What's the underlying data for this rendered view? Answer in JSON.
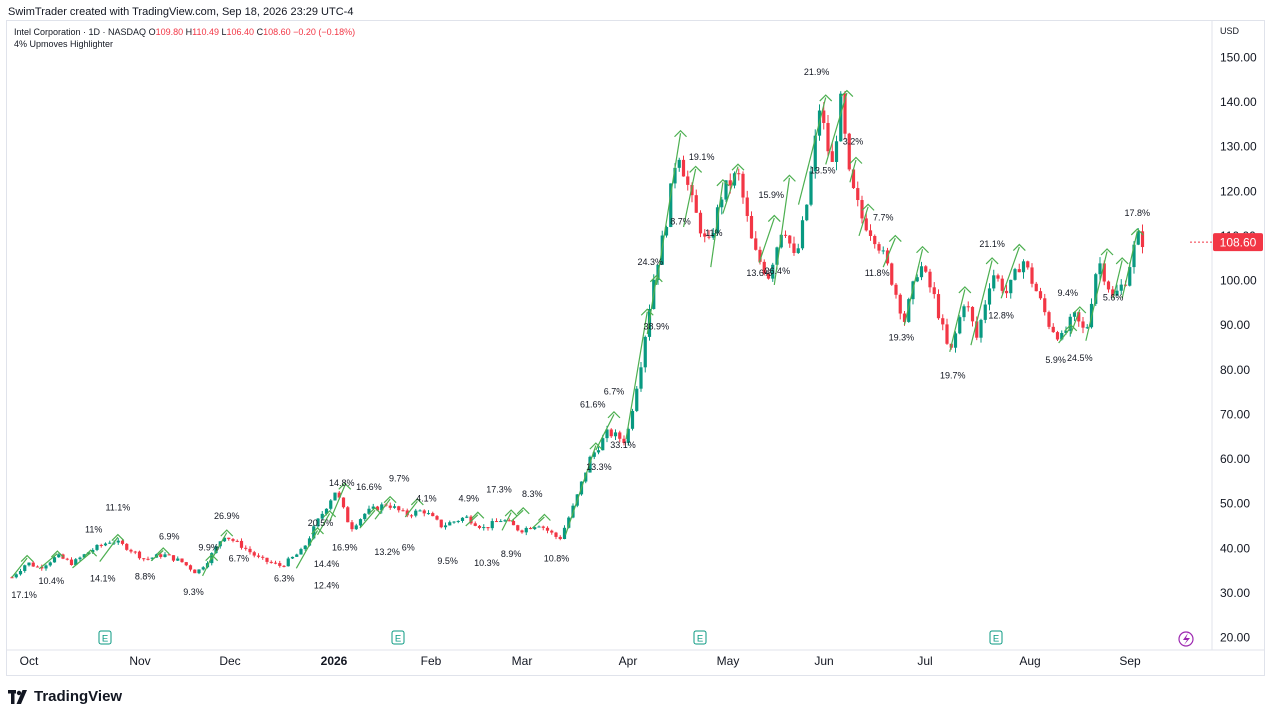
{
  "header": {
    "credit": "SwimTrader created with TradingView.com, Sep 18, 2026 23:29 UTC-4"
  },
  "legend": {
    "symbol": "Intel Corporation · 1D · NASDAQ",
    "open_label": "O",
    "open": "109.80",
    "high_label": "H",
    "high": "110.49",
    "low_label": "L",
    "low": "106.40",
    "close_label": "C",
    "close": "108.60",
    "change": "−0.20 (−0.18%)",
    "indicator": "4% Upmoves Highlighter"
  },
  "currency": "USD",
  "footer": {
    "brand": "TradingView"
  },
  "colors": {
    "up": "#089981",
    "down": "#f23645",
    "upmove": "#4caf50",
    "earnings": "#089981",
    "text": "#131722",
    "grid": "#e0e3eb"
  },
  "chart_data": {
    "type": "candlestick",
    "y_axis": {
      "ticks": [
        "150.00",
        "140.00",
        "130.00",
        "120.00",
        "110.00",
        "100.00",
        "90.00",
        "80.00",
        "70.00",
        "60.00",
        "50.00",
        "40.00",
        "30.00",
        "20.00"
      ],
      "range": [
        16,
        152
      ],
      "position": "right"
    },
    "x_axis": {
      "ticks": [
        "Oct",
        "Nov",
        "Dec",
        "2026",
        "Feb",
        "Mar",
        "Apr",
        "May",
        "Jun",
        "Jul",
        "Aug",
        "Sep"
      ],
      "bold": [
        "2026"
      ]
    },
    "last_price": "108.60",
    "grid": false,
    "earnings_markers": {
      "label": "E",
      "months": [
        "Nov",
        "Jan",
        "May",
        "Aug"
      ]
    },
    "dividend_marker": {
      "icon": "lightning-icon",
      "month": "Sep"
    },
    "price_path": [
      {
        "date": "2025-10-01",
        "price": 33.5
      },
      {
        "date": "2025-10-06",
        "price": 36.8
      },
      {
        "date": "2025-10-10",
        "price": 35.6
      },
      {
        "date": "2025-10-16",
        "price": 38.2
      },
      {
        "date": "2025-10-21",
        "price": 36.6
      },
      {
        "date": "2025-10-27",
        "price": 39.5
      },
      {
        "date": "2025-11-03",
        "price": 41.8
      },
      {
        "date": "2025-11-08",
        "price": 40.2
      },
      {
        "date": "2025-11-14",
        "price": 37.5
      },
      {
        "date": "2025-11-20",
        "price": 38.6
      },
      {
        "date": "2025-11-26",
        "price": 37.0
      },
      {
        "date": "2025-12-01",
        "price": 34.5
      },
      {
        "date": "2025-12-05",
        "price": 37.5
      },
      {
        "date": "2025-12-10",
        "price": 43.0
      },
      {
        "date": "2025-12-16",
        "price": 40.5
      },
      {
        "date": "2025-12-22",
        "price": 37.5
      },
      {
        "date": "2025-12-29",
        "price": 36.0
      },
      {
        "date": "2026-01-05",
        "price": 39.5
      },
      {
        "date": "2026-01-10",
        "price": 46.0
      },
      {
        "date": "2026-01-16",
        "price": 53.0
      },
      {
        "date": "2026-01-21",
        "price": 44.5
      },
      {
        "date": "2026-01-26",
        "price": 48.0
      },
      {
        "date": "2026-02-02",
        "price": 50.0
      },
      {
        "date": "2026-02-08",
        "price": 47.5
      },
      {
        "date": "2026-02-14",
        "price": 48.5
      },
      {
        "date": "2026-02-20",
        "price": 45.0
      },
      {
        "date": "2026-02-28",
        "price": 47.0
      },
      {
        "date": "2026-03-06",
        "price": 44.5
      },
      {
        "date": "2026-03-12",
        "price": 46.5
      },
      {
        "date": "2026-03-18",
        "price": 44.0
      },
      {
        "date": "2026-03-24",
        "price": 45.5
      },
      {
        "date": "2026-03-31",
        "price": 42.0
      },
      {
        "date": "2026-04-05",
        "price": 50.0
      },
      {
        "date": "2026-04-10",
        "price": 60.0
      },
      {
        "date": "2026-04-16",
        "price": 66.0
      },
      {
        "date": "2026-04-22",
        "price": 64.0
      },
      {
        "date": "2026-04-27",
        "price": 82.0
      },
      {
        "date": "2026-05-01",
        "price": 100.0
      },
      {
        "date": "2026-05-05",
        "price": 112.0
      },
      {
        "date": "2026-05-09",
        "price": 130.0
      },
      {
        "date": "2026-05-14",
        "price": 117.0
      },
      {
        "date": "2026-05-19",
        "price": 107.0
      },
      {
        "date": "2026-05-24",
        "price": 120.0
      },
      {
        "date": "2026-05-29",
        "price": 124.0
      },
      {
        "date": "2026-06-03",
        "price": 107.0
      },
      {
        "date": "2026-06-08",
        "price": 101.0
      },
      {
        "date": "2026-06-13",
        "price": 113.0
      },
      {
        "date": "2026-06-17",
        "price": 104.0
      },
      {
        "date": "2026-06-21",
        "price": 118.0
      },
      {
        "date": "2026-06-25",
        "price": 139.0
      },
      {
        "date": "2026-06-29",
        "price": 125.0
      },
      {
        "date": "2026-07-02",
        "price": 140.0
      },
      {
        "date": "2026-07-05",
        "price": 122.0
      },
      {
        "date": "2026-07-09",
        "price": 114.0
      },
      {
        "date": "2026-07-14",
        "price": 109.0
      },
      {
        "date": "2026-07-18",
        "price": 102.0
      },
      {
        "date": "2026-07-23",
        "price": 91.0
      },
      {
        "date": "2026-07-28",
        "price": 104.0
      },
      {
        "date": "2026-08-02",
        "price": 96.0
      },
      {
        "date": "2026-08-07",
        "price": 83.0
      },
      {
        "date": "2026-08-12",
        "price": 96.0
      },
      {
        "date": "2026-08-16",
        "price": 87.0
      },
      {
        "date": "2026-08-21",
        "price": 102.0
      },
      {
        "date": "2026-08-26",
        "price": 97.0
      },
      {
        "date": "2026-08-31",
        "price": 105.0
      },
      {
        "date": "2026-09-05",
        "price": 97.0
      },
      {
        "date": "2026-09-09",
        "price": 90.0
      },
      {
        "date": "2026-09-13",
        "price": 87.0
      },
      {
        "date": "2026-09-17",
        "price": 92.0
      },
      {
        "date": "2026-09-21",
        "price": 88.0
      },
      {
        "date": "2026-09-25",
        "price": 105.0
      },
      {
        "date": "2026-09-30",
        "price": 96.0
      },
      {
        "date": "2026-10-04",
        "price": 100.0
      },
      {
        "date": "2026-10-08",
        "price": 110.0
      },
      {
        "date": "2026-10-10",
        "price": 108.6
      }
    ],
    "upmoves": [
      {
        "from": {
          "date": "2025-10-01",
          "price": 33.5
        },
        "to": {
          "date": "2025-10-06",
          "price": 37.8
        }
      },
      {
        "from": {
          "date": "2025-10-10",
          "price": 35.4
        },
        "to": {
          "date": "2025-10-16",
          "price": 38.8
        }
      },
      {
        "from": {
          "date": "2025-10-21",
          "price": 35.6
        },
        "to": {
          "date": "2025-10-27",
          "price": 39.0
        }
      },
      {
        "from": {
          "date": "2025-10-30",
          "price": 37.0
        },
        "to": {
          "date": "2025-11-05",
          "price": 42.5
        }
      },
      {
        "from": {
          "date": "2025-11-16",
          "price": 37.2
        },
        "to": {
          "date": "2025-11-20",
          "price": 39.5
        }
      },
      {
        "from": {
          "date": "2025-12-03",
          "price": 33.8
        },
        "to": {
          "date": "2025-12-06",
          "price": 38.0
        }
      },
      {
        "from": {
          "date": "2025-12-06",
          "price": 37.5
        },
        "to": {
          "date": "2025-12-11",
          "price": 43.5
        }
      },
      {
        "from": {
          "date": "2026-01-03",
          "price": 35.5
        },
        "to": {
          "date": "2026-01-10",
          "price": 44.0
        }
      },
      {
        "from": {
          "date": "2026-01-10",
          "price": 43.0
        },
        "to": {
          "date": "2026-01-14",
          "price": 47.8
        }
      },
      {
        "from": {
          "date": "2026-01-14",
          "price": 46.0
        },
        "to": {
          "date": "2026-01-19",
          "price": 54.0
        }
      },
      {
        "from": {
          "date": "2026-01-24",
          "price": 44.5
        },
        "to": {
          "date": "2026-01-29",
          "price": 48.5
        }
      },
      {
        "from": {
          "date": "2026-01-29",
          "price": 46.5
        },
        "to": {
          "date": "2026-02-03",
          "price": 51.0
        }
      },
      {
        "from": {
          "date": "2026-02-08",
          "price": 47.0
        },
        "to": {
          "date": "2026-02-12",
          "price": 50.5
        }
      },
      {
        "from": {
          "date": "2026-02-28",
          "price": 45.0
        },
        "to": {
          "date": "2026-03-04",
          "price": 47.5
        }
      },
      {
        "from": {
          "date": "2026-03-12",
          "price": 44.0
        },
        "to": {
          "date": "2026-03-15",
          "price": 48.0
        }
      },
      {
        "from": {
          "date": "2026-03-15",
          "price": 46.0
        },
        "to": {
          "date": "2026-03-19",
          "price": 48.5
        }
      },
      {
        "from": {
          "date": "2026-03-22",
          "price": 44.5
        },
        "to": {
          "date": "2026-03-26",
          "price": 47.0
        }
      },
      {
        "from": {
          "date": "2026-04-02",
          "price": 43.0
        },
        "to": {
          "date": "2026-04-12",
          "price": 63.0
        }
      },
      {
        "from": {
          "date": "2026-04-12",
          "price": 62.0
        },
        "to": {
          "date": "2026-04-18",
          "price": 70.0
        }
      },
      {
        "from": {
          "date": "2026-04-22",
          "price": 64.5
        },
        "to": {
          "date": "2026-04-29",
          "price": 93.0
        }
      },
      {
        "from": {
          "date": "2026-04-29",
          "price": 88.0
        },
        "to": {
          "date": "2026-05-02",
          "price": 100.5
        }
      },
      {
        "from": {
          "date": "2026-05-02",
          "price": 99.0
        },
        "to": {
          "date": "2026-05-10",
          "price": 133.0
        }
      },
      {
        "from": {
          "date": "2026-05-11",
          "price": 112.0
        },
        "to": {
          "date": "2026-05-15",
          "price": 125.0
        }
      },
      {
        "from": {
          "date": "2026-05-20",
          "price": 103.0
        },
        "to": {
          "date": "2026-05-24",
          "price": 122.0
        }
      },
      {
        "from": {
          "date": "2026-05-24",
          "price": 115.0
        },
        "to": {
          "date": "2026-05-29",
          "price": 125.5
        }
      },
      {
        "from": {
          "date": "2026-06-05",
          "price": 104.0
        },
        "to": {
          "date": "2026-06-10",
          "price": 114.0
        }
      },
      {
        "from": {
          "date": "2026-06-10",
          "price": 99.0
        },
        "to": {
          "date": "2026-06-15",
          "price": 123.0
        }
      },
      {
        "from": {
          "date": "2026-06-18",
          "price": 117.0
        },
        "to": {
          "date": "2026-06-27",
          "price": 141.0
        }
      },
      {
        "from": {
          "date": "2026-06-27",
          "price": 126.0
        },
        "to": {
          "date": "2026-07-04",
          "price": 142.0
        }
      },
      {
        "from": {
          "date": "2026-07-05",
          "price": 122.0
        },
        "to": {
          "date": "2026-07-07",
          "price": 127.0
        }
      },
      {
        "from": {
          "date": "2026-07-08",
          "price": 110.0
        },
        "to": {
          "date": "2026-07-11",
          "price": 116.5
        }
      },
      {
        "from": {
          "date": "2026-07-16",
          "price": 103.0
        },
        "to": {
          "date": "2026-07-20",
          "price": 109.5
        }
      },
      {
        "from": {
          "date": "2026-07-23",
          "price": 90.0
        },
        "to": {
          "date": "2026-07-29",
          "price": 107.0
        }
      },
      {
        "from": {
          "date": "2026-08-07",
          "price": 84.0
        },
        "to": {
          "date": "2026-08-12",
          "price": 98.0
        }
      },
      {
        "from": {
          "date": "2026-08-14",
          "price": 85.5
        },
        "to": {
          "date": "2026-08-21",
          "price": 104.5
        }
      },
      {
        "from": {
          "date": "2026-08-24",
          "price": 96.0
        },
        "to": {
          "date": "2026-08-30",
          "price": 107.5
        }
      },
      {
        "from": {
          "date": "2026-09-12",
          "price": 86.0
        },
        "to": {
          "date": "2026-09-16",
          "price": 89.5
        }
      },
      {
        "from": {
          "date": "2026-09-16",
          "price": 88.0
        },
        "to": {
          "date": "2026-09-19",
          "price": 93.5
        }
      },
      {
        "from": {
          "date": "2026-09-21",
          "price": 86.5
        },
        "to": {
          "date": "2026-09-28",
          "price": 106.5
        }
      },
      {
        "from": {
          "date": "2026-09-30",
          "price": 96.0
        },
        "to": {
          "date": "2026-10-03",
          "price": 104.5
        }
      },
      {
        "from": {
          "date": "2026-10-03",
          "price": 96.0
        },
        "to": {
          "date": "2026-10-08",
          "price": 111.0
        }
      }
    ],
    "annotations": [
      {
        "text": "17.1%",
        "date": "2025-10-05",
        "price": 28.8
      },
      {
        "text": "10.4%",
        "date": "2025-10-14",
        "price": 32.0
      },
      {
        "text": "11%",
        "date": "2025-10-28",
        "price": 43.5
      },
      {
        "text": "14.1%",
        "date": "2025-10-31",
        "price": 32.5
      },
      {
        "text": "11.1%",
        "date": "2025-11-05",
        "price": 48.5
      },
      {
        "text": "8.8%",
        "date": "2025-11-14",
        "price": 33.0
      },
      {
        "text": "6.9%",
        "date": "2025-11-22",
        "price": 42.0
      },
      {
        "text": "9.3%",
        "date": "2025-11-30",
        "price": 29.5
      },
      {
        "text": "9.9%",
        "date": "2025-12-05",
        "price": 39.5
      },
      {
        "text": "26.9%",
        "date": "2025-12-11",
        "price": 46.5
      },
      {
        "text": "6.7%",
        "date": "2025-12-15",
        "price": 37.0
      },
      {
        "text": "6.3%",
        "date": "2025-12-30",
        "price": 32.5
      },
      {
        "text": "20.5%",
        "date": "2026-01-11",
        "price": 45.0
      },
      {
        "text": "14.4%",
        "date": "2026-01-13",
        "price": 35.8
      },
      {
        "text": "12.4%",
        "date": "2026-01-13",
        "price": 31.0
      },
      {
        "text": "14.8%",
        "date": "2026-01-18",
        "price": 54.0
      },
      {
        "text": "16.9%",
        "date": "2026-01-19",
        "price": 39.5
      },
      {
        "text": "16.6%",
        "date": "2026-01-27",
        "price": 53.0
      },
      {
        "text": "13.2%",
        "date": "2026-02-02",
        "price": 38.5
      },
      {
        "text": "9.7%",
        "date": "2026-02-06",
        "price": 55.0
      },
      {
        "text": "6%",
        "date": "2026-02-09",
        "price": 39.5
      },
      {
        "text": "4.1%",
        "date": "2026-02-15",
        "price": 50.5
      },
      {
        "text": "9.5%",
        "date": "2026-02-22",
        "price": 36.5
      },
      {
        "text": "4.9%",
        "date": "2026-03-01",
        "price": 50.5
      },
      {
        "text": "10.3%",
        "date": "2026-03-07",
        "price": 36.0
      },
      {
        "text": "17.3%",
        "date": "2026-03-11",
        "price": 52.5
      },
      {
        "text": "8.9%",
        "date": "2026-03-15",
        "price": 38.0
      },
      {
        "text": "8.3%",
        "date": "2026-03-22",
        "price": 51.5
      },
      {
        "text": "10.8%",
        "date": "2026-03-30",
        "price": 37.0
      },
      {
        "text": "61.6%",
        "date": "2026-04-11",
        "price": 71.5
      },
      {
        "text": "13.3%",
        "date": "2026-04-13",
        "price": 57.5
      },
      {
        "text": "6.7%",
        "date": "2026-04-18",
        "price": 74.5
      },
      {
        "text": "33.1%",
        "date": "2026-04-21",
        "price": 62.5
      },
      {
        "text": "24.3%",
        "date": "2026-04-30",
        "price": 103.5
      },
      {
        "text": "38.9%",
        "date": "2026-05-02",
        "price": 89.0
      },
      {
        "text": "8.7%",
        "date": "2026-05-10",
        "price": 112.5
      },
      {
        "text": "19.1%",
        "date": "2026-05-17",
        "price": 127.0
      },
      {
        "text": "11%",
        "date": "2026-05-21",
        "price": 110.0
      },
      {
        "text": "13.6%",
        "date": "2026-06-05",
        "price": 101.0
      },
      {
        "text": "26.4%",
        "date": "2026-06-11",
        "price": 101.5
      },
      {
        "text": "15.9%",
        "date": "2026-06-09",
        "price": 118.5
      },
      {
        "text": "21.9%",
        "date": "2026-06-24",
        "price": 146.0
      },
      {
        "text": "13.5%",
        "date": "2026-06-26",
        "price": 124.0
      },
      {
        "text": "3.2%",
        "date": "2026-07-06",
        "price": 130.5
      },
      {
        "text": "7.7%",
        "date": "2026-07-16",
        "price": 113.5
      },
      {
        "text": "11.8%",
        "date": "2026-07-14",
        "price": 101.0
      },
      {
        "text": "19.3%",
        "date": "2026-07-22",
        "price": 86.5
      },
      {
        "text": "19.7%",
        "date": "2026-08-08",
        "price": 78.0
      },
      {
        "text": "21.1%",
        "date": "2026-08-21",
        "price": 107.5
      },
      {
        "text": "12.8%",
        "date": "2026-08-24",
        "price": 91.5
      },
      {
        "text": "5.9%",
        "date": "2026-09-11",
        "price": 81.5
      },
      {
        "text": "9.4%",
        "date": "2026-09-15",
        "price": 96.5
      },
      {
        "text": "24.5%",
        "date": "2026-09-19",
        "price": 82.0
      },
      {
        "text": "5.6%",
        "date": "2026-09-30",
        "price": 95.5
      },
      {
        "text": "17.8%",
        "date": "2026-10-08",
        "price": 114.5
      }
    ]
  }
}
